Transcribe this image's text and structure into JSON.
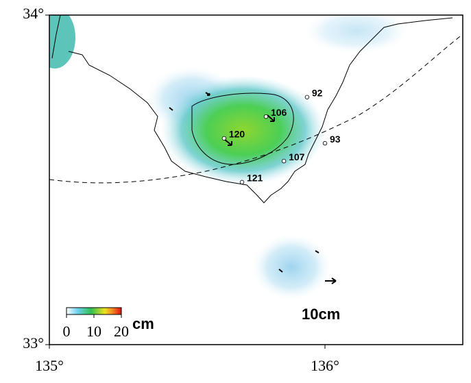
{
  "map": {
    "xlim": [
      135,
      136.5
    ],
    "ylim": [
      33,
      34
    ],
    "xticks": [
      {
        "value": 135,
        "label": "135°"
      },
      {
        "value": 136,
        "label": "136°"
      }
    ],
    "yticks": [
      {
        "value": 33,
        "label": "33°"
      },
      {
        "value": 34,
        "label": "34°"
      }
    ],
    "stations": [
      {
        "name": "92",
        "lon": 135.935,
        "lat": 33.751
      },
      {
        "name": "106",
        "lon": 135.786,
        "lat": 33.692
      },
      {
        "name": "120",
        "lon": 135.634,
        "lat": 33.626
      },
      {
        "name": "93",
        "lon": 136.0,
        "lat": 33.611
      },
      {
        "name": "107",
        "lon": 135.851,
        "lat": 33.557
      },
      {
        "name": "121",
        "lon": 135.699,
        "lat": 33.493
      }
    ],
    "colorbar": {
      "ticks": [
        0,
        10,
        20
      ],
      "unit": "cm"
    },
    "scale_label": "10cm"
  }
}
